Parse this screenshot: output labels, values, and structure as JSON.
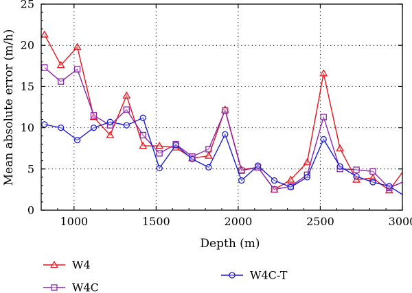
{
  "chart_data": {
    "type": "line",
    "xlabel": "Depth (m)",
    "ylabel": "Mean absolute error (m/h)",
    "xlim": [
      800,
      3000
    ],
    "ylim": [
      0,
      25
    ],
    "xticks": [
      1000,
      1500,
      2000,
      2500,
      3000
    ],
    "yticks": [
      0,
      5,
      10,
      15,
      20,
      25
    ],
    "grid": true,
    "legend_position": "bottom",
    "x": [
      820,
      920,
      1020,
      1120,
      1220,
      1320,
      1420,
      1520,
      1620,
      1720,
      1820,
      1920,
      2020,
      2120,
      2220,
      2320,
      2420,
      2520,
      2620,
      2720,
      2820,
      2920,
      3000
    ],
    "series": [
      {
        "name": "W4",
        "color": "#e8131a",
        "marker": "triangle",
        "values": [
          21.3,
          17.6,
          19.8,
          11.3,
          9.1,
          13.9,
          7.8,
          7.8,
          7.6,
          6.3,
          6.6,
          12.2,
          4.9,
          5.2,
          2.5,
          3.7,
          5.8,
          16.6,
          7.5,
          3.7,
          3.9,
          2.4,
          4.6
        ]
      },
      {
        "name": "W4C",
        "color": "#8b24a8",
        "marker": "square",
        "values": [
          17.3,
          15.6,
          17.1,
          11.5,
          10.3,
          12.2,
          9.1,
          6.9,
          8.0,
          6.5,
          7.4,
          12.1,
          4.8,
          5.2,
          2.5,
          2.9,
          4.3,
          11.3,
          5.0,
          4.9,
          4.7,
          2.7,
          3.4
        ]
      },
      {
        "name": "W4C-T",
        "color": "#1b1bd6",
        "marker": "circle",
        "values": [
          10.4,
          10.0,
          8.5,
          10.0,
          10.7,
          10.3,
          11.2,
          5.1,
          7.9,
          6.2,
          5.2,
          9.2,
          3.6,
          5.4,
          3.6,
          2.8,
          4.0,
          8.6,
          5.3,
          4.1,
          3.4,
          2.9,
          1.9
        ]
      }
    ]
  }
}
